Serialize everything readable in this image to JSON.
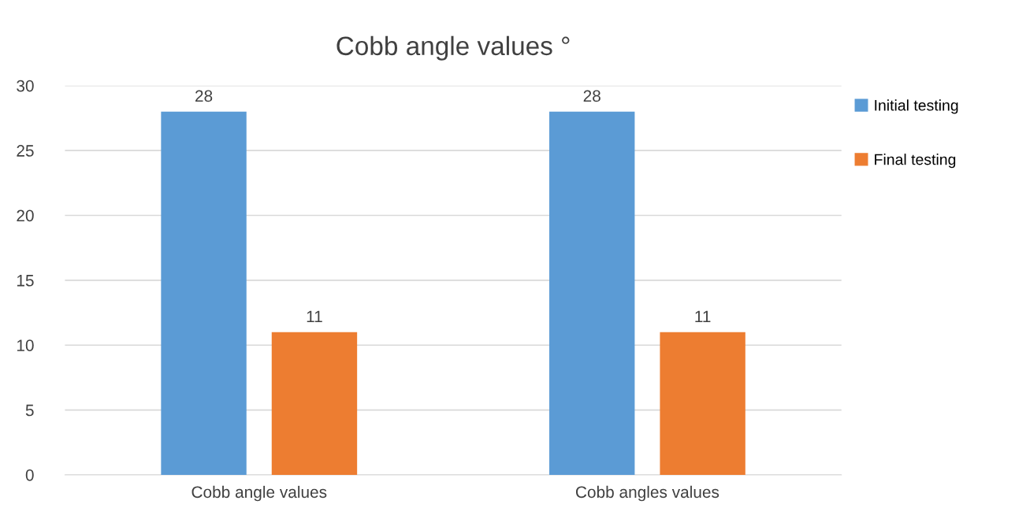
{
  "chart_data": {
    "type": "bar",
    "title": "Cobb angle values °",
    "categories": [
      "Cobb angle values",
      "Cobb angles values"
    ],
    "series": [
      {
        "name": "Initial testing",
        "color": "#5b9bd5",
        "values": [
          28,
          28
        ]
      },
      {
        "name": "Final testing",
        "color": "#ed7d31",
        "values": [
          11,
          11
        ]
      }
    ],
    "ylim": [
      0,
      30
    ],
    "yticks": [
      0,
      5,
      10,
      15,
      20,
      25,
      30
    ],
    "grid": "y",
    "legend": "top right",
    "data_labels": true
  }
}
